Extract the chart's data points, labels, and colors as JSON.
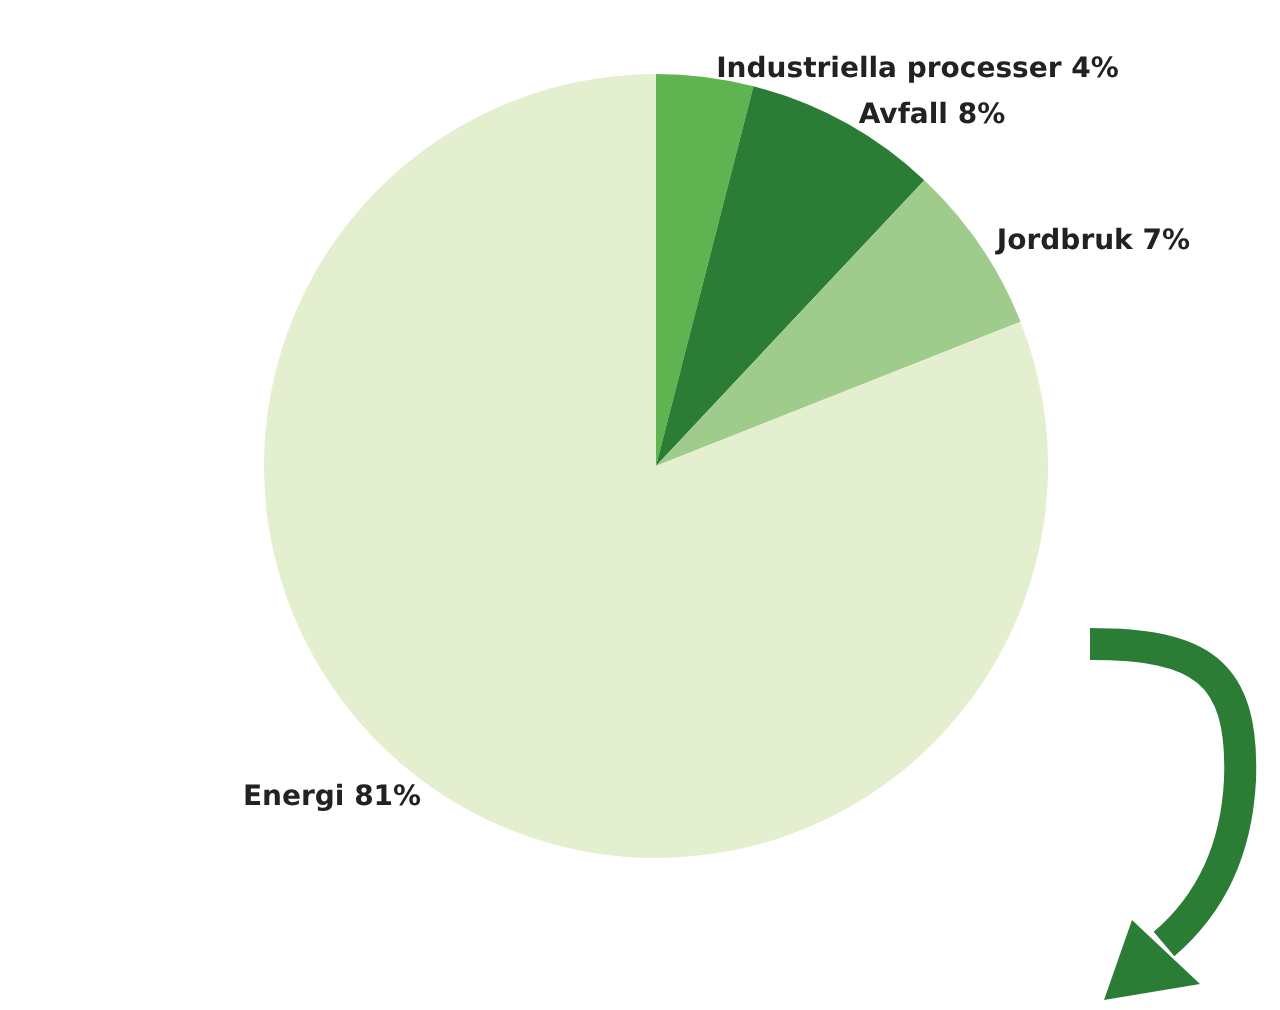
{
  "chart_data": {
    "type": "pie",
    "categories": [
      "Industriella processer",
      "Avfall",
      "Jordbruk",
      "Energi"
    ],
    "values": [
      4,
      8,
      7,
      81
    ],
    "colors": [
      "#5fb350",
      "#2b7d35",
      "#9fcc8c",
      "#e4efd0"
    ],
    "value_labels": [
      "4%",
      "8%",
      "7%",
      "81%"
    ]
  }
}
